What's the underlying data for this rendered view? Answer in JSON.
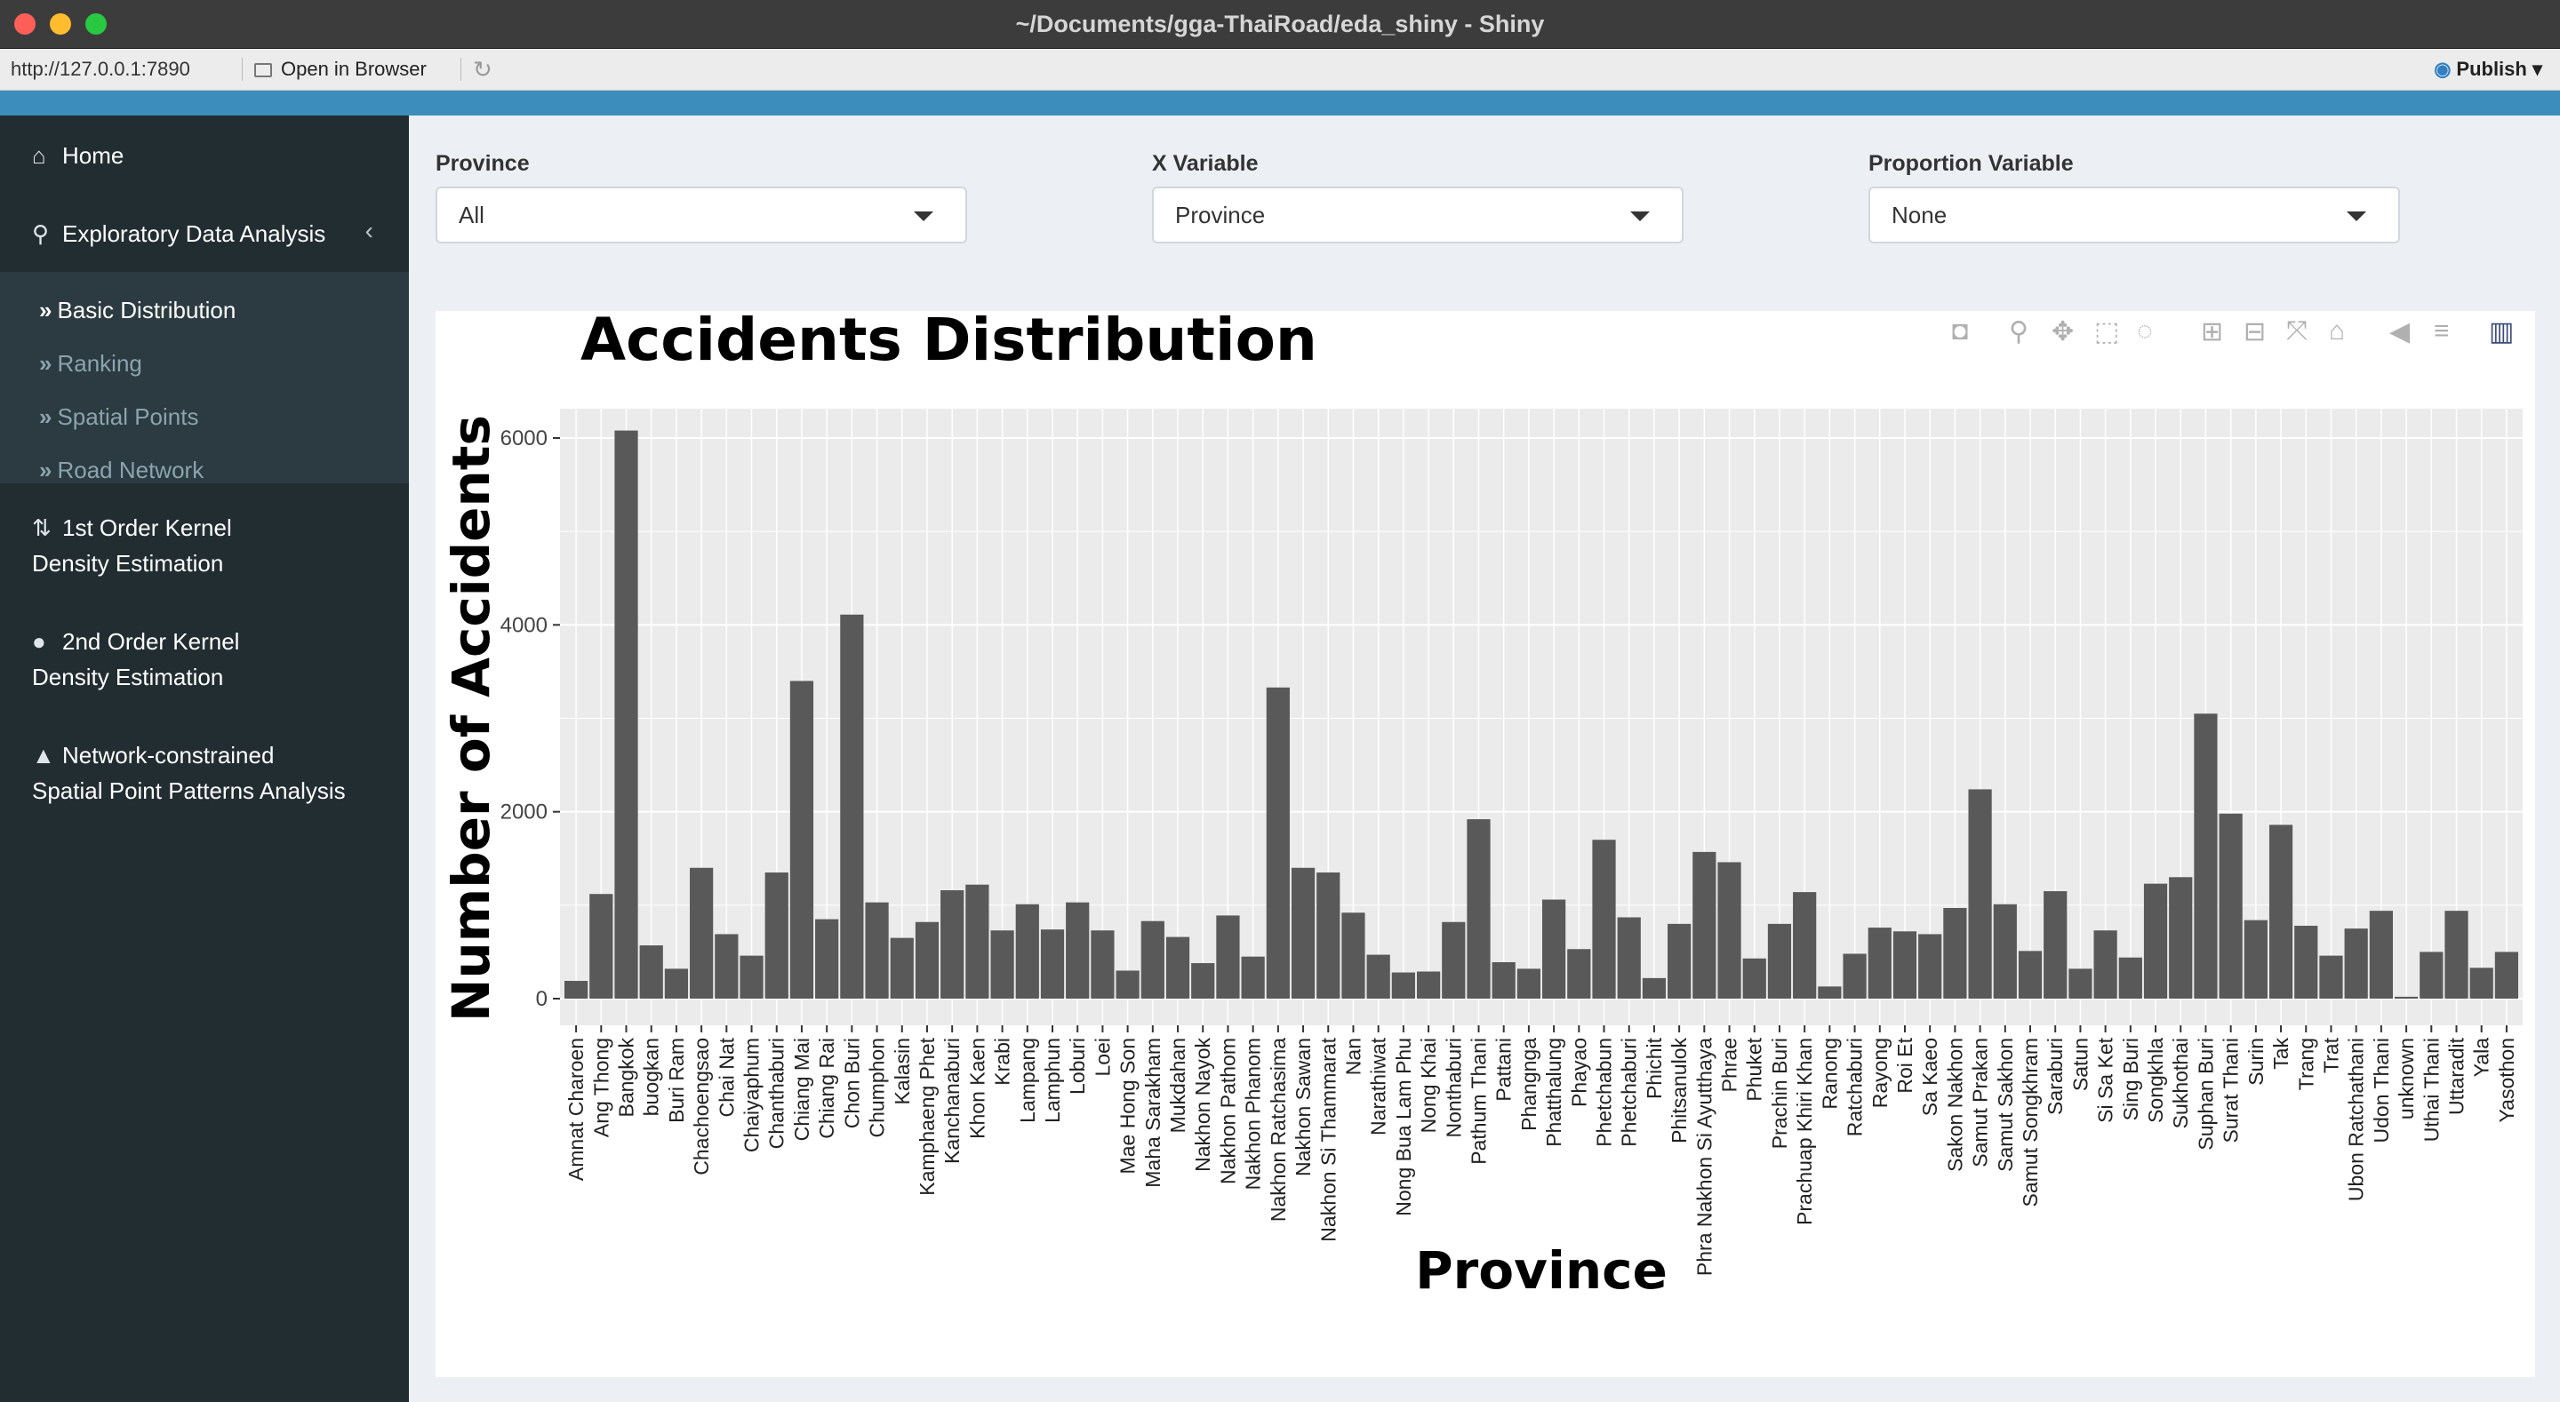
{
  "window": {
    "title": "~/Documents/gga-ThaiRoad/eda_shiny - Shiny",
    "url": "http://127.0.0.1:7890",
    "open_in_browser": "Open in Browser",
    "publish": "Publish"
  },
  "sidebar": {
    "home": "Home",
    "eda": "Exploratory Data Analysis",
    "sub_items": [
      "Basic Distribution",
      "Ranking",
      "Spatial Points",
      "Road Network"
    ],
    "kde1_line1": "1st Order Kernel",
    "kde1_line2": "Density Estimation",
    "kde2_line1": "2nd Order Kernel",
    "kde2_line2": "Density Estimation",
    "net_line1": "Network-constrained",
    "net_line2": "Spatial Point Patterns Analysis"
  },
  "controls": {
    "province_label": "Province",
    "province_value": "All",
    "xvar_label": "X Variable",
    "xvar_value": "Province",
    "prop_label": "Proportion Variable",
    "prop_value": "None"
  },
  "modebar_icons": [
    "camera-icon",
    "zoom-icon",
    "pan-icon",
    "box-select-icon",
    "lasso-icon",
    "zoom-in-icon",
    "zoom-out-icon",
    "autoscale-icon",
    "reset-axes-icon",
    "spike-lines-icon",
    "compare-hover-icon",
    "plotly-logo-icon"
  ],
  "colors": {
    "bar": "#595959",
    "panel": "#ebebeb",
    "sidebar": "#222d32",
    "header": "#3c8dbc"
  },
  "chart_data": {
    "type": "bar",
    "title": "Accidents Distribution",
    "xlabel": "Province",
    "ylabel": "Number of Accidents",
    "ylim": [
      0,
      6300
    ],
    "yticks": [
      0,
      2000,
      4000,
      6000
    ],
    "grid": true,
    "categories": [
      "Amnat Charoen",
      "Ang Thong",
      "Bangkok",
      "buogkan",
      "Buri Ram",
      "Chachoengsao",
      "Chai Nat",
      "Chaiyaphum",
      "Chanthaburi",
      "Chiang Mai",
      "Chiang Rai",
      "Chon Buri",
      "Chumphon",
      "Kalasin",
      "Kamphaeng Phet",
      "Kanchanaburi",
      "Khon Kaen",
      "Krabi",
      "Lampang",
      "Lamphun",
      "Loburi",
      "Loei",
      "Mae Hong Son",
      "Maha Sarakham",
      "Mukdahan",
      "Nakhon Nayok",
      "Nakhon Pathom",
      "Nakhon Phanom",
      "Nakhon Ratchasima",
      "Nakhon Sawan",
      "Nakhon Si Thammarat",
      "Nan",
      "Narathiwat",
      "Nong Bua Lam Phu",
      "Nong Khai",
      "Nonthaburi",
      "Pathum Thani",
      "Pattani",
      "Phangnga",
      "Phatthalung",
      "Phayao",
      "Phetchabun",
      "Phetchaburi",
      "Phichit",
      "Phitsanulok",
      "Phra Nakhon Si Ayutthaya",
      "Phrae",
      "Phuket",
      "Prachin Buri",
      "Prachuap Khiri Khan",
      "Ranong",
      "Ratchaburi",
      "Rayong",
      "Roi Et",
      "Sa Kaeo",
      "Sakon Nakhon",
      "Samut Prakan",
      "Samut Sakhon",
      "Samut Songkhram",
      "Saraburi",
      "Satun",
      "Si Sa Ket",
      "Sing Buri",
      "Songkhla",
      "Sukhothai",
      "Suphan Buri",
      "Surat Thani",
      "Surin",
      "Tak",
      "Trang",
      "Trat",
      "Ubon Ratchathani",
      "Udon Thani",
      "unknown",
      "Uthai Thani",
      "Uttaradit",
      "Yala",
      "Yasothon"
    ],
    "values": [
      190,
      1120,
      6080,
      570,
      320,
      1400,
      690,
      460,
      1350,
      3400,
      850,
      4110,
      1030,
      650,
      820,
      1160,
      1220,
      730,
      1010,
      740,
      1030,
      730,
      300,
      830,
      660,
      380,
      890,
      450,
      3330,
      1400,
      1350,
      920,
      470,
      280,
      290,
      820,
      1920,
      390,
      320,
      1060,
      530,
      1700,
      870,
      220,
      800,
      1570,
      1460,
      430,
      800,
      1140,
      130,
      480,
      760,
      720,
      690,
      970,
      2240,
      1010,
      510,
      1150,
      320,
      730,
      440,
      1230,
      1300,
      3050,
      1980,
      840,
      1860,
      780,
      460,
      750,
      940,
      20,
      500,
      940,
      330,
      500
    ]
  }
}
